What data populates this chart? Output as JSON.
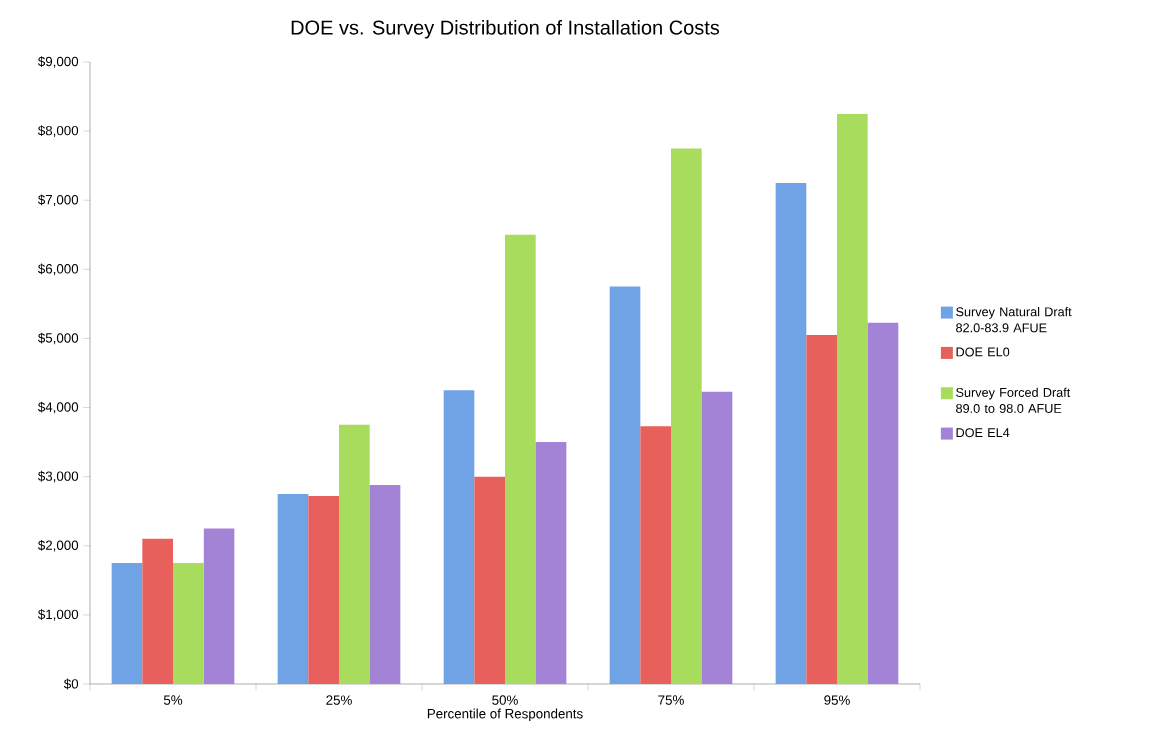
{
  "chart_data": {
    "type": "bar",
    "title": "DOE vs. Survey Distribution of Installation Costs",
    "xlabel": "Percentile of Respondents",
    "categories": [
      "5%",
      "25%",
      "50%",
      "75%",
      "95%"
    ],
    "series": [
      {
        "name": "Survey Natural Draft 82.0-83.9 AFUE",
        "color": "#6fa3e6",
        "values": [
          1750,
          2750,
          4250,
          5750,
          7250
        ]
      },
      {
        "name": "DOE EL0",
        "color": "#e8605c",
        "values": [
          2100,
          2720,
          3000,
          3730,
          5050
        ]
      },
      {
        "name": "Survey Forced Draft 89.0 to 98.0 AFUE",
        "color": "#a8dc5c",
        "values": [
          1750,
          3750,
          6500,
          7750,
          8250
        ]
      },
      {
        "name": "DOE EL4",
        "color": "#a383d6",
        "values": [
          2250,
          2880,
          3500,
          4230,
          5230
        ]
      }
    ],
    "ylim": [
      0,
      9000
    ],
    "yticks": [
      {
        "value": 0,
        "label": "$0"
      },
      {
        "value": 1000,
        "label": "$1,000"
      },
      {
        "value": 2000,
        "label": "$2,000"
      },
      {
        "value": 3000,
        "label": "$3,000"
      },
      {
        "value": 4000,
        "label": "$4,000"
      },
      {
        "value": 5000,
        "label": "$5,000"
      },
      {
        "value": 6000,
        "label": "$6,000"
      },
      {
        "value": 7000,
        "label": "$7,000"
      },
      {
        "value": 8000,
        "label": "$8,000"
      },
      {
        "value": 9000,
        "label": "$9,000"
      }
    ],
    "legend": "right"
  }
}
